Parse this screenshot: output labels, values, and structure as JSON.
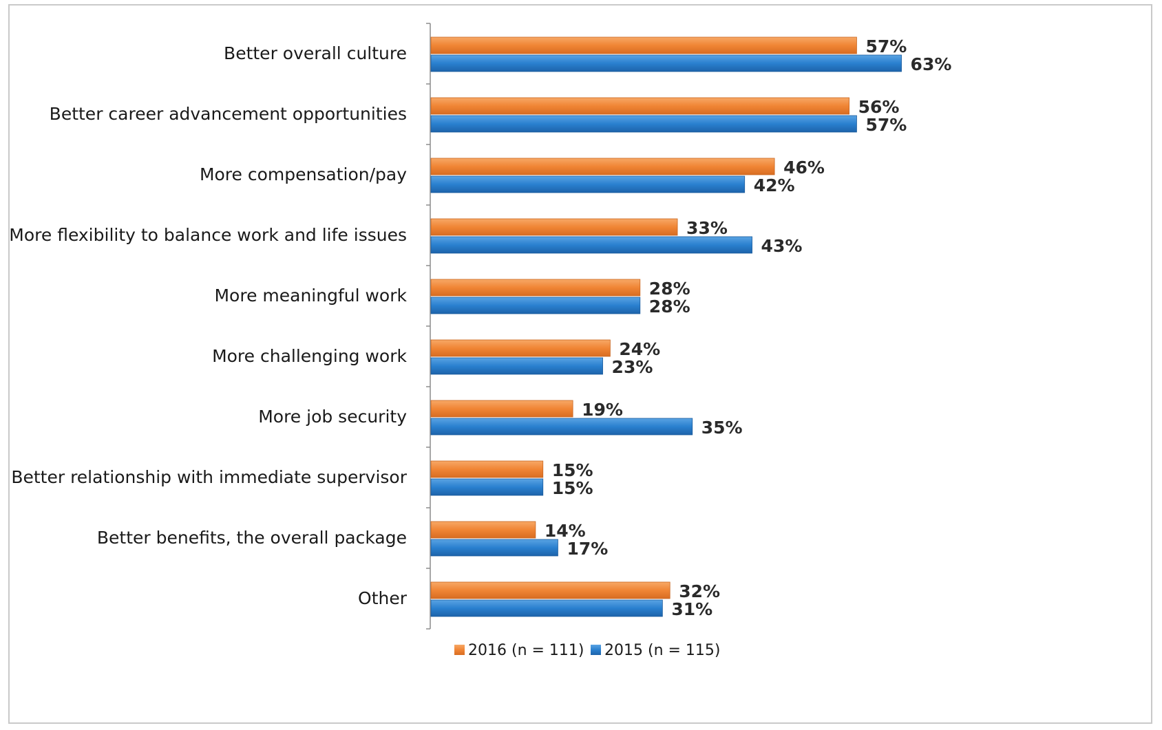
{
  "chart_data": {
    "type": "bar",
    "orientation": "horizontal",
    "categories": [
      "Better overall culture",
      "Better career advancement opportunities",
      "More compensation/pay",
      "More flexibility to balance work and life issues",
      "More meaningful work",
      "More challenging work",
      "More job security",
      "Better relationship with immediate supervisor",
      "Better benefits, the overall package",
      "Other"
    ],
    "series": [
      {
        "name": "2016 (n = 111)",
        "color": "#f28a3c",
        "values": [
          57,
          56,
          46,
          33,
          28,
          24,
          19,
          15,
          14,
          32
        ],
        "labels": [
          "57%",
          "56%",
          "46%",
          "33%",
          "28%",
          "24%",
          "19%",
          "15%",
          "14%",
          "32%"
        ]
      },
      {
        "name": "2015 (n = 115)",
        "color": "#2f86d1",
        "values": [
          63,
          57,
          42,
          43,
          28,
          23,
          35,
          15,
          17,
          31
        ],
        "labels": [
          "63%",
          "57%",
          "42%",
          "43%",
          "28%",
          "23%",
          "35%",
          "15%",
          "17%",
          "31%"
        ]
      }
    ],
    "xlim": [
      0,
      100
    ],
    "grid": false,
    "legend_position": "bottom",
    "unit": "%"
  }
}
